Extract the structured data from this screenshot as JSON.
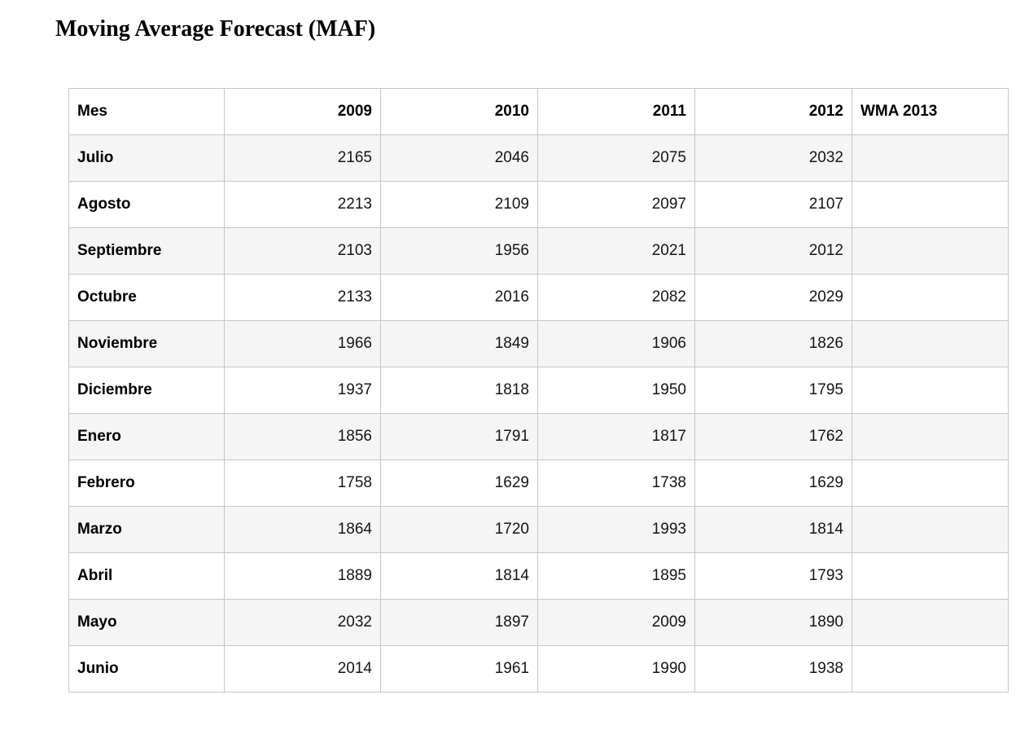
{
  "title": "Moving Average Forecast (MAF)",
  "table": {
    "columns": [
      {
        "key": "mes",
        "label": "Mes",
        "align": "left"
      },
      {
        "key": "y2009",
        "label": "2009",
        "align": "right"
      },
      {
        "key": "y2010",
        "label": "2010",
        "align": "right"
      },
      {
        "key": "y2011",
        "label": "2011",
        "align": "right"
      },
      {
        "key": "y2012",
        "label": "2012",
        "align": "right"
      },
      {
        "key": "wma2013",
        "label": "WMA 2013",
        "align": "left"
      }
    ],
    "rows": [
      {
        "mes": "Julio",
        "values": [
          "2165",
          "2046",
          "2075",
          "2032",
          ""
        ]
      },
      {
        "mes": "Agosto",
        "values": [
          "2213",
          "2109",
          "2097",
          "2107",
          ""
        ]
      },
      {
        "mes": "Septiembre",
        "values": [
          "2103",
          "1956",
          "2021",
          "2012",
          ""
        ]
      },
      {
        "mes": "Octubre",
        "values": [
          "2133",
          "2016",
          "2082",
          "2029",
          ""
        ]
      },
      {
        "mes": "Noviembre",
        "values": [
          "1966",
          "1849",
          "1906",
          "1826",
          ""
        ]
      },
      {
        "mes": "Diciembre",
        "values": [
          "1937",
          "1818",
          "1950",
          "1795",
          ""
        ]
      },
      {
        "mes": "Enero",
        "values": [
          "1856",
          "1791",
          "1817",
          "1762",
          ""
        ]
      },
      {
        "mes": "Febrero",
        "values": [
          "1758",
          "1629",
          "1738",
          "1629",
          ""
        ]
      },
      {
        "mes": "Marzo",
        "values": [
          "1864",
          "1720",
          "1993",
          "1814",
          ""
        ]
      },
      {
        "mes": "Abril",
        "values": [
          "1889",
          "1814",
          "1895",
          "1793",
          ""
        ]
      },
      {
        "mes": "Mayo",
        "values": [
          "2032",
          "1897",
          "2009",
          "1890",
          ""
        ]
      },
      {
        "mes": "Junio",
        "values": [
          "2014",
          "1961",
          "1990",
          "1938",
          ""
        ]
      }
    ]
  },
  "colors": {
    "stripe": "#f5f5f5",
    "border": "#c6c6c6",
    "text": "#151515"
  }
}
